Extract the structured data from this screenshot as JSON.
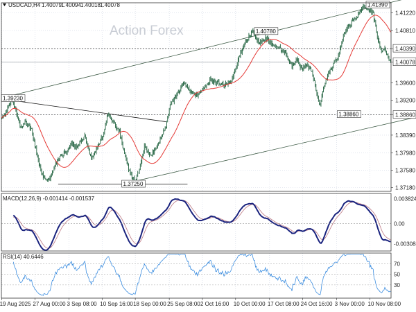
{
  "chart_data": {
    "type": "candlestick",
    "symbol": "USDCAD,H4",
    "header": {
      "symbol_label": "USDCAD,H4",
      "ohlc": [
        "1.40079",
        "1.40094",
        "1.40018",
        "1.40078"
      ]
    },
    "watermark": "Action Forex",
    "price_axis": {
      "range": [
        1.3709,
        1.4145
      ],
      "tick_labels": [
        "1.41220",
        "1.40810",
        "1.40390",
        "1.40078",
        "1.39600",
        "1.39200",
        "1.38860",
        "1.38390",
        "1.37980",
        "1.37580",
        "1.37180"
      ],
      "tick_values": [
        1.4122,
        1.4081,
        1.4039,
        1.40078,
        1.396,
        1.392,
        1.3886,
        1.3839,
        1.3798,
        1.3758,
        1.3718
      ],
      "highlighted": [
        "1.40390",
        "1.40078",
        "1.38860"
      ]
    },
    "time_axis": {
      "labels": [
        "19 Aug 2025",
        "27 Aug 00:00",
        "3 Sep 08:00",
        "10 Sep 16:00",
        "18 Sep 00:00",
        "25 Sep 08:00",
        "2 Oct 16:00",
        "10 Oct 00:00",
        "17 Oct 08:00",
        "24 Oct 16:00",
        "3 Nov 00:00",
        "10 Nov 08:00"
      ],
      "label_bars": [
        0,
        40,
        81,
        121,
        161,
        202,
        242,
        282,
        323,
        363,
        404,
        444
      ]
    },
    "bar_count": 470,
    "price_anchors": [
      [
        0,
        1.3878
      ],
      [
        6,
        1.3895
      ],
      [
        12,
        1.3922
      ],
      [
        17,
        1.3894
      ],
      [
        23,
        1.3856
      ],
      [
        28,
        1.3868
      ],
      [
        36,
        1.3852
      ],
      [
        44,
        1.378
      ],
      [
        50,
        1.3742
      ],
      [
        56,
        1.3734
      ],
      [
        62,
        1.376
      ],
      [
        70,
        1.3792
      ],
      [
        78,
        1.38
      ],
      [
        84,
        1.382
      ],
      [
        92,
        1.3812
      ],
      [
        100,
        1.3836
      ],
      [
        108,
        1.3786
      ],
      [
        114,
        1.3805
      ],
      [
        122,
        1.3838
      ],
      [
        128,
        1.389
      ],
      [
        134,
        1.3872
      ],
      [
        142,
        1.3846
      ],
      [
        150,
        1.378
      ],
      [
        156,
        1.3745
      ],
      [
        161,
        1.3732
      ],
      [
        166,
        1.376
      ],
      [
        172,
        1.3812
      ],
      [
        180,
        1.379
      ],
      [
        186,
        1.381
      ],
      [
        192,
        1.383
      ],
      [
        198,
        1.3862
      ],
      [
        204,
        1.3912
      ],
      [
        212,
        1.3935
      ],
      [
        220,
        1.396
      ],
      [
        228,
        1.3938
      ],
      [
        236,
        1.3932
      ],
      [
        244,
        1.3945
      ],
      [
        252,
        1.3968
      ],
      [
        260,
        1.396
      ],
      [
        268,
        1.3955
      ],
      [
        276,
        1.3965
      ],
      [
        282,
        1.3992
      ],
      [
        288,
        1.403
      ],
      [
        296,
        1.406
      ],
      [
        302,
        1.4078
      ],
      [
        310,
        1.4052
      ],
      [
        318,
        1.4065
      ],
      [
        326,
        1.405
      ],
      [
        334,
        1.4042
      ],
      [
        342,
        1.403
      ],
      [
        350,
        1.3998
      ],
      [
        356,
        1.4012
      ],
      [
        362,
        1.3992
      ],
      [
        368,
        1.4002
      ],
      [
        374,
        1.3986
      ],
      [
        380,
        1.3935
      ],
      [
        384,
        1.3905
      ],
      [
        388,
        1.395
      ],
      [
        394,
        1.3982
      ],
      [
        400,
        1.4002
      ],
      [
        406,
        1.4022
      ],
      [
        412,
        1.407
      ],
      [
        418,
        1.409
      ],
      [
        424,
        1.4105
      ],
      [
        430,
        1.4118
      ],
      [
        436,
        1.4139
      ],
      [
        442,
        1.413
      ],
      [
        448,
        1.4118
      ],
      [
        454,
        1.406
      ],
      [
        458,
        1.403
      ],
      [
        462,
        1.4042
      ],
      [
        466,
        1.4018
      ],
      [
        469,
        1.4008
      ]
    ],
    "moving_average": {
      "period": 34,
      "color": "#e53935"
    },
    "price_annotations": [
      {
        "label": "1.39230",
        "value": 1.3923,
        "bar": 0
      },
      {
        "label": "1.37250",
        "value": 1.3725,
        "bar": 158
      },
      {
        "label": "1.40780",
        "value": 1.4078,
        "bar": 318
      },
      {
        "label": "1.41390",
        "value": 1.4139,
        "bar": 464
      },
      {
        "label": "1.38860",
        "value": 1.3886,
        "bar": 418
      }
    ],
    "horizontal_levels": [
      {
        "value": 1.4039,
        "style": "dotted"
      },
      {
        "value": 1.40078,
        "style": "solid-light"
      },
      {
        "value": 1.3886,
        "style": "dotted"
      }
    ],
    "trendlines": [
      {
        "from": [
          0,
          1.3925
        ],
        "to": [
          512,
          1.4166
        ],
        "color": "#3d5a45"
      },
      {
        "from": [
          150,
          1.3728
        ],
        "to": [
          540,
          1.3898
        ],
        "color": "#3d5a45"
      },
      {
        "from": [
          10,
          1.392
        ],
        "to": [
          198,
          1.387
        ],
        "color": "#111111"
      },
      {
        "from": [
          68,
          1.3726
        ],
        "to": [
          224,
          1.3726
        ],
        "color": "#111111"
      }
    ],
    "macd": {
      "label": "MACD(12,26,9) -0.001414 -0.001537",
      "fast": 12,
      "slow": 26,
      "signal": 9,
      "tick_labels": [
        "0.003824",
        "0.00",
        "-0.003084"
      ],
      "tick_values": [
        0.003824,
        0,
        -0.003084
      ],
      "range": [
        -0.0042,
        0.0046
      ],
      "macd_color": "#1a237e",
      "signal_color": "#c2858f"
    },
    "rsi": {
      "label": "RSI(14) 40.6446",
      "period": 14,
      "tick_labels": [
        "70",
        "50",
        "30"
      ],
      "tick_values": [
        70,
        50,
        30
      ],
      "range": [
        5,
        90
      ],
      "color": "#3d8ee0"
    },
    "colors": {
      "candle": "#1b5e3a",
      "grid": "#cfd6e3",
      "background": "#ffffff",
      "axis_text": "#222222"
    }
  }
}
